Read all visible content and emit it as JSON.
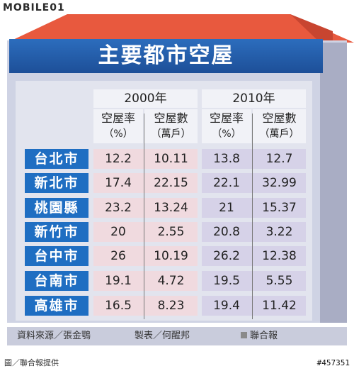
{
  "logo": {
    "text": "MOBILE01"
  },
  "title": "主要都市空屋",
  "columns": {
    "year_a": "2000年",
    "year_b": "2010年",
    "rate_label": "空屋率",
    "rate_unit": "（%）",
    "count_label": "空屋數",
    "count_unit": "（萬戶）"
  },
  "rows": [
    {
      "city": "台北市",
      "rate_2000": "12.2",
      "count_2000": "10.11",
      "rate_2010": "13.8",
      "count_2010": "12.7"
    },
    {
      "city": "新北市",
      "rate_2000": "17.4",
      "count_2000": "22.15",
      "rate_2010": "22.1",
      "count_2010": "32.99"
    },
    {
      "city": "桃園縣",
      "rate_2000": "23.2",
      "count_2000": "13.24",
      "rate_2010": "21",
      "count_2010": "15.37"
    },
    {
      "city": "新竹市",
      "rate_2000": "20",
      "count_2000": "2.55",
      "rate_2010": "20.8",
      "count_2010": "3.22"
    },
    {
      "city": "台中市",
      "rate_2000": "26",
      "count_2000": "10.19",
      "rate_2010": "26.2",
      "count_2010": "12.38"
    },
    {
      "city": "台南市",
      "rate_2000": "19.1",
      "count_2000": "4.72",
      "rate_2010": "19.5",
      "count_2010": "5.55"
    },
    {
      "city": "高雄市",
      "rate_2000": "16.5",
      "count_2000": "8.23",
      "rate_2010": "19.4",
      "count_2010": "11.42"
    }
  ],
  "footer": {
    "source": "資料來源／張金鶚",
    "maker": "製表／何醒邦",
    "publisher": "聯合報"
  },
  "credit": "圖／聯合報提供",
  "image_id": "#457351",
  "colors": {
    "roof": "#e8593e",
    "banner": "#1f5ba8",
    "city_label": "#1f6ec2",
    "cell_2000": "#f0dadf",
    "cell_2010": "#d6d2e8"
  }
}
